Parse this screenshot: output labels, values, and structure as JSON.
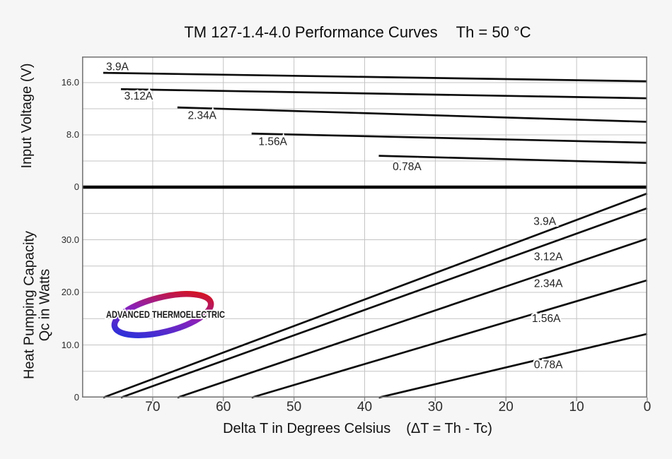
{
  "logo": {
    "text": "ADVANCED THERMOELECTRIC",
    "gradient": [
      "#2233dd",
      "#8822bb",
      "#dd1111"
    ]
  },
  "colors": {
    "background": "#f6f6f6",
    "plot_background": "#ffffff",
    "grid": "#c4c4c4",
    "border": "#787878",
    "curve": "#0c0c0c",
    "divider": "#000000",
    "text": "#1a1a1a"
  },
  "chart_data": {
    "type": "line",
    "title": "TM 127-1.4-4.0 Performance Curves",
    "condition": "Th = 50 °C",
    "legend_position": "inline-labels",
    "grid": true,
    "x_axis": {
      "label": "Delta T in Degrees Celsius",
      "annotation": "(ΔT = Th - Tc)",
      "range_left_to_right": [
        80,
        0
      ],
      "reversed": true,
      "ticks": [
        {
          "value": 70,
          "label": "70"
        },
        {
          "value": 60,
          "label": "60"
        },
        {
          "value": 50,
          "label": "50"
        },
        {
          "value": 40,
          "label": "40"
        },
        {
          "value": 30,
          "label": "30"
        },
        {
          "value": 20,
          "label": "20"
        },
        {
          "value": 10,
          "label": "10"
        },
        {
          "value": 0,
          "label": "0"
        }
      ],
      "grid_values": [
        70,
        60,
        50,
        40,
        30,
        20,
        10
      ]
    },
    "top_panel": {
      "ylabel": "Input Voltage (V)",
      "ylim": [
        0,
        20
      ],
      "ticks": [
        {
          "value": 16,
          "label": "16.0"
        },
        {
          "value": 8,
          "label": "8.0"
        },
        {
          "value": 0,
          "label": "0"
        }
      ],
      "grid_values": [
        16,
        12,
        8,
        4
      ]
    },
    "bottom_panel": {
      "ylabel_line1": "Heat Pumping Capacity",
      "ylabel_line2": "Qc in Watts",
      "ylim": [
        0,
        40
      ],
      "ticks": [
        {
          "value": 30,
          "label": "30.0"
        },
        {
          "value": 20,
          "label": "20.0"
        },
        {
          "value": 10,
          "label": "10.0"
        },
        {
          "value": 0,
          "label": "0"
        }
      ],
      "grid_values": [
        35,
        30,
        25,
        20,
        15,
        10,
        5
      ]
    },
    "series": [
      {
        "current": "3.9A",
        "voltage_line": {
          "points": [
            [
              77,
              17.5
            ],
            [
              0,
              16.2
            ]
          ],
          "label_at": [
            75,
            18.4
          ]
        },
        "qc_line": {
          "points": [
            [
              77,
              0
            ],
            [
              0,
              38.8
            ]
          ],
          "label_at": [
            14.5,
            33.4
          ]
        }
      },
      {
        "current": "3.12A",
        "voltage_line": {
          "points": [
            [
              74.5,
              15.0
            ],
            [
              0,
              13.6
            ]
          ],
          "label_at": [
            72,
            13.9
          ]
        },
        "qc_line": {
          "points": [
            [
              74.5,
              0
            ],
            [
              0,
              36.0
            ]
          ],
          "label_at": [
            14,
            26.7
          ]
        }
      },
      {
        "current": "2.34A",
        "voltage_line": {
          "points": [
            [
              66.5,
              12.2
            ],
            [
              0,
              10.0
            ]
          ],
          "label_at": [
            63,
            10.9
          ]
        },
        "qc_line": {
          "points": [
            [
              66.5,
              0
            ],
            [
              0,
              30.2
            ]
          ],
          "label_at": [
            14,
            21.6
          ]
        }
      },
      {
        "current": "1.56A",
        "voltage_line": {
          "points": [
            [
              56,
              8.2
            ],
            [
              0,
              6.8
            ]
          ],
          "label_at": [
            53,
            6.9
          ]
        },
        "qc_line": {
          "points": [
            [
              56,
              0
            ],
            [
              0,
              22.3
            ]
          ],
          "label_at": [
            14.3,
            15.0
          ]
        }
      },
      {
        "current": "0.78A",
        "voltage_line": {
          "points": [
            [
              38,
              4.8
            ],
            [
              0,
              3.7
            ]
          ],
          "label_at": [
            34,
            3.1
          ]
        },
        "qc_line": {
          "points": [
            [
              38,
              0
            ],
            [
              0,
              12.1
            ]
          ],
          "label_at": [
            14,
            6.2
          ]
        }
      }
    ]
  }
}
